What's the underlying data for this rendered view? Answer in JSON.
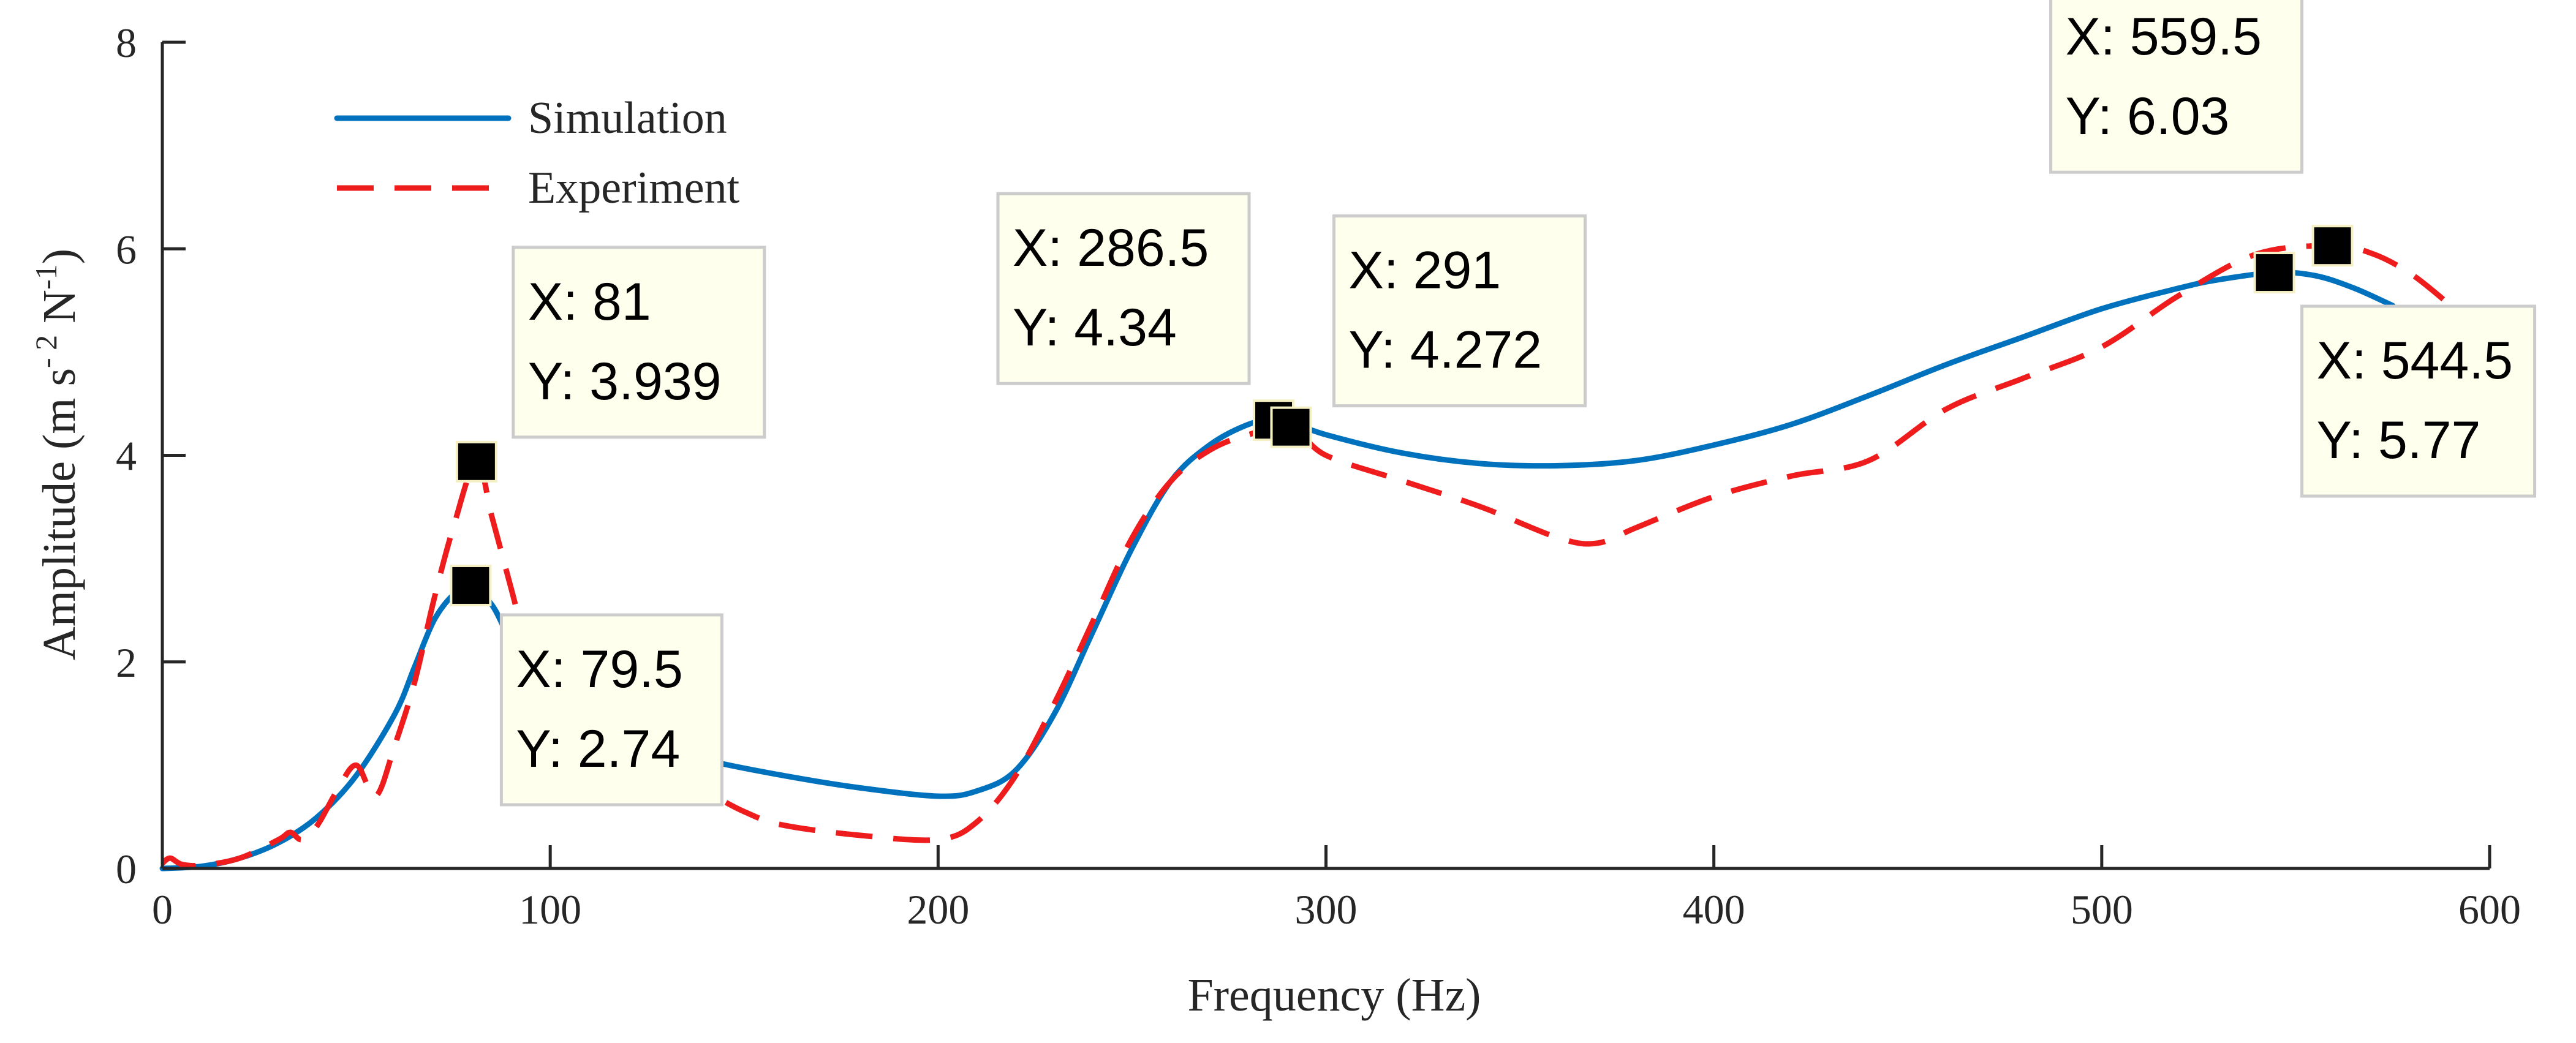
{
  "chart_data": {
    "type": "line",
    "xlabel": "Frequency (Hz)",
    "ylabel_parts": [
      "Amplitude (m s",
      "- 2",
      " N",
      "-1",
      ")"
    ],
    "xlim": [
      0,
      600
    ],
    "ylim": [
      0,
      8
    ],
    "xticks": [
      0,
      100,
      200,
      300,
      400,
      500,
      600
    ],
    "yticks": [
      0,
      2,
      4,
      6,
      8
    ],
    "xtick_labels": [
      "0",
      "100",
      "200",
      "300",
      "400",
      "500",
      "600"
    ],
    "ytick_labels": [
      "0",
      "2",
      "4",
      "6",
      "8"
    ],
    "grid": false,
    "legend_position": "top-left",
    "series": [
      {
        "name": "Simulation",
        "color": "#0072BD",
        "style": "solid",
        "x": [
          0,
          10,
          20,
          30,
          40,
          50,
          60,
          65,
          70,
          75,
          79.5,
          85,
          90,
          100,
          110,
          120,
          140,
          160,
          180,
          200,
          210,
          220,
          230,
          240,
          250,
          260,
          270,
          280,
          286.5,
          291,
          300,
          320,
          340,
          360,
          380,
          400,
          420,
          440,
          460,
          480,
          500,
          520,
          530,
          544.5,
          555,
          565,
          575
        ],
        "y": [
          0,
          0.02,
          0.1,
          0.25,
          0.5,
          0.9,
          1.5,
          1.95,
          2.4,
          2.65,
          2.74,
          2.55,
          2.2,
          1.65,
          1.4,
          1.25,
          1.05,
          0.9,
          0.78,
          0.7,
          0.75,
          0.95,
          1.5,
          2.3,
          3.1,
          3.75,
          4.1,
          4.3,
          4.34,
          4.32,
          4.2,
          4.02,
          3.92,
          3.9,
          3.95,
          4.1,
          4.3,
          4.58,
          4.88,
          5.15,
          5.42,
          5.62,
          5.7,
          5.77,
          5.74,
          5.62,
          5.45
        ]
      },
      {
        "name": "Experiment",
        "color": "#EE1C1C",
        "style": "dashed",
        "x": [
          0,
          2,
          5,
          10,
          20,
          30,
          33,
          36,
          40,
          45,
          50,
          55,
          60,
          65,
          70,
          75,
          81,
          85,
          90,
          95,
          100,
          110,
          120,
          130,
          140,
          150,
          160,
          180,
          200,
          210,
          220,
          230,
          240,
          250,
          260,
          270,
          280,
          291,
          300,
          320,
          340,
          360,
          370,
          380,
          400,
          420,
          440,
          460,
          480,
          500,
          520,
          540,
          559.5,
          570,
          580,
          590
        ],
        "y": [
          0.05,
          0.1,
          0.04,
          0.03,
          0.1,
          0.28,
          0.35,
          0.28,
          0.42,
          0.75,
          1.0,
          0.7,
          1.2,
          1.8,
          2.6,
          3.3,
          3.939,
          3.4,
          2.7,
          2.0,
          1.6,
          1.3,
          1.15,
          0.95,
          0.75,
          0.55,
          0.42,
          0.32,
          0.28,
          0.45,
          0.9,
          1.6,
          2.4,
          3.2,
          3.75,
          4.05,
          4.2,
          4.272,
          4.0,
          3.75,
          3.5,
          3.2,
          3.15,
          3.3,
          3.6,
          3.8,
          3.95,
          4.45,
          4.75,
          5.05,
          5.55,
          5.95,
          6.03,
          5.95,
          5.75,
          5.45
        ]
      }
    ],
    "datatips": [
      {
        "x": 81,
        "y": 3.939,
        "line1": "X: 81",
        "line2": "Y: 3.939"
      },
      {
        "x": 79.5,
        "y": 2.74,
        "line1": "X: 79.5",
        "line2": "Y: 2.74"
      },
      {
        "x": 286.5,
        "y": 4.34,
        "line1": "X: 286.5",
        "line2": "Y: 4.34"
      },
      {
        "x": 291,
        "y": 4.272,
        "line1": "X: 291",
        "line2": "Y: 4.272"
      },
      {
        "x": 559.5,
        "y": 6.03,
        "line1": "X: 559.5",
        "line2": "Y: 6.03"
      },
      {
        "x": 544.5,
        "y": 5.77,
        "line1": "X: 544.5",
        "line2": "Y: 5.77"
      }
    ]
  }
}
